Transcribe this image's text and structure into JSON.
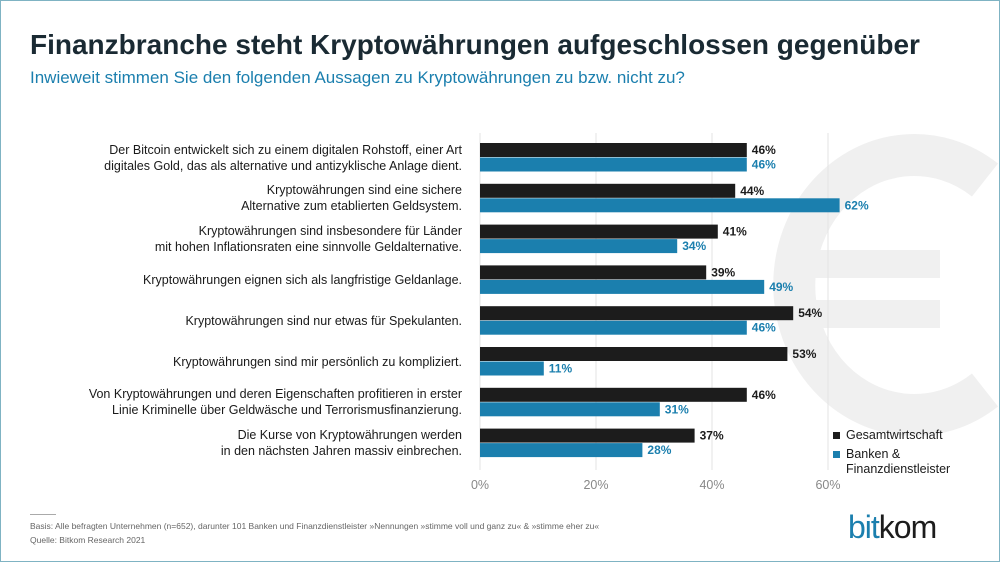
{
  "title": "Finanzbranche steht Kryptowährungen aufgeschlossen gegenüber",
  "subtitle": "Inwieweit stimmen Sie den folgenden Aussagen zu Kryptowährungen zu bzw. nicht zu?",
  "colors": {
    "gesamt": "#1c1c1c",
    "banken": "#1b7fae",
    "background_symbol": "euro"
  },
  "chart_data": {
    "type": "bar",
    "orientation": "horizontal",
    "categories": [
      [
        "Der Bitcoin entwickelt sich zu einem digitalen Rohstoff, einer Art",
        "digitales Gold, das als alternative und antizyklische Anlage dient."
      ],
      [
        "Kryptowährungen sind eine sichere",
        "Alternative  zum etablierten Geldsystem."
      ],
      [
        "Kryptowährungen sind insbesondere für Länder",
        "mit hohen Inflationsraten eine sinnvolle Geldalternative."
      ],
      [
        "Kryptowährungen eignen sich als langfristige Geldanlage."
      ],
      [
        "Kryptowährungen sind nur etwas für Spekulanten."
      ],
      [
        "Kryptowährungen sind mir persönlich zu kompliziert."
      ],
      [
        "Von Kryptowährungen und deren Eigenschaften profitieren in erster",
        "Linie Kriminelle über Geldwäsche und Terrorismusfinanzierung."
      ],
      [
        "Die Kurse von Kryptowährungen werden",
        "in den nächsten Jahren massiv einbrechen."
      ]
    ],
    "series": [
      {
        "name": "Gesamtwirtschaft",
        "values": [
          46,
          44,
          41,
          39,
          54,
          53,
          46,
          37
        ],
        "color": "#1c1c1c"
      },
      {
        "name": "Banken & Finanzdienstleister",
        "legend_lines": [
          "Banken &",
          "Finanzdienstleister"
        ],
        "values": [
          46,
          62,
          34,
          49,
          46,
          11,
          31,
          28
        ],
        "color": "#1b7fae"
      }
    ],
    "value_suffix": "%",
    "xlim": [
      0,
      60
    ],
    "xticks": [
      "0%",
      "20%",
      "40%",
      "60%"
    ],
    "grid": true,
    "legend_position": "bottom-right"
  },
  "footer": {
    "basis": "Basis: Alle befragten Unternehmen (n=652), darunter 101 Banken und Finanzdienstleister  »Nennungen »stimme voll und ganz zu« & »stimme eher zu«",
    "source": "Quelle: Bitkom Research 2021"
  },
  "logo": {
    "part1": "bit",
    "part2": "kom"
  }
}
